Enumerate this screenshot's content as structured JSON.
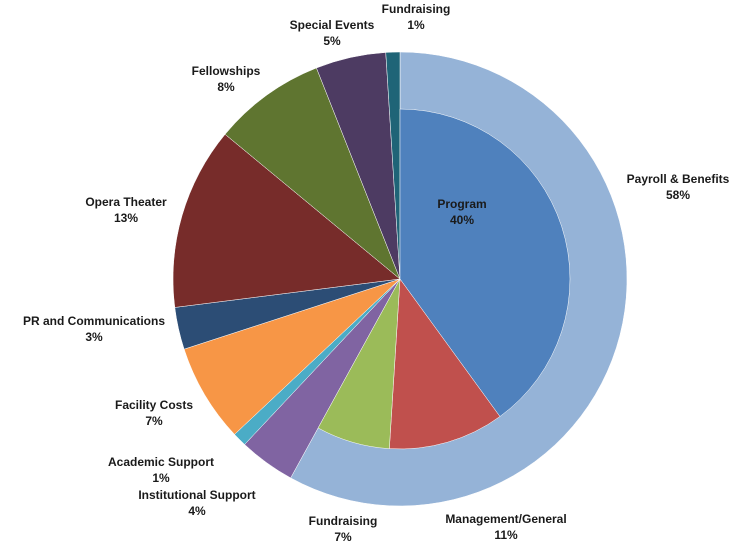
{
  "chart_data": [
    {
      "type": "pie",
      "ring": "outer",
      "categories": [
        "Payroll & Benefits",
        "Institutional Support",
        "Academic Support",
        "Facility Costs",
        "PR and Communications",
        "Opera Theater",
        "Fellowships",
        "Special Events",
        "Fundraising"
      ],
      "values": [
        58,
        4,
        1,
        7,
        3,
        13,
        8,
        5,
        1
      ],
      "labels": [
        "58%",
        "4%",
        "1%",
        "7%",
        "3%",
        "13%",
        "8%",
        "5%",
        "1%"
      ],
      "colors": [
        "#95B3D7",
        "#8064A2",
        "#4BACC6",
        "#F79646",
        "#2C4D75",
        "#772C2A",
        "#5F7530",
        "#4D3B62",
        "#1F6477"
      ]
    },
    {
      "type": "pie",
      "ring": "inner",
      "categories": [
        "Program",
        "Management/General",
        "Fundraising"
      ],
      "values": [
        40,
        11,
        7
      ],
      "labels": [
        "40%",
        "11%",
        "7%"
      ],
      "colors": [
        "#4F81BD",
        "#C0504D",
        "#9BBB59"
      ]
    }
  ]
}
